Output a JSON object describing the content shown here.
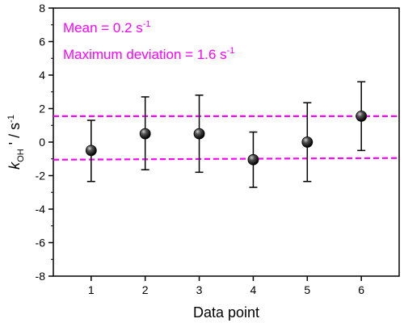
{
  "chart_data": {
    "type": "scatter",
    "xlabel": "Data point",
    "ylabel_parts": {
      "k": "k",
      "sub": "OH",
      "mid": " ' / s",
      "sup": "-1"
    },
    "xlim": [
      0.3,
      6.7
    ],
    "ylim": [
      -8,
      8
    ],
    "x_ticks": [
      "1",
      "2",
      "3",
      "4",
      "5",
      "6"
    ],
    "y_ticks": [
      "-8",
      "-6",
      "-4",
      "-2",
      "0",
      "2",
      "4",
      "6",
      "8"
    ],
    "points": [
      {
        "x": 1,
        "y": -0.5,
        "err_low": -2.35,
        "err_high": 1.3
      },
      {
        "x": 2,
        "y": 0.5,
        "err_low": -1.65,
        "err_high": 2.7
      },
      {
        "x": 3,
        "y": 0.5,
        "err_low": -1.8,
        "err_high": 2.8
      },
      {
        "x": 4,
        "y": -1.05,
        "err_low": -2.7,
        "err_high": 0.6
      },
      {
        "x": 5,
        "y": 0.0,
        "err_low": -2.35,
        "err_high": 2.35
      },
      {
        "x": 6,
        "y": 1.55,
        "err_low": -0.5,
        "err_high": 3.6
      }
    ],
    "reference_lines": [
      {
        "y_start": 1.55,
        "y_end": 1.55,
        "style": "dashed",
        "color": "#ff00ff"
      },
      {
        "y_start": -1.05,
        "y_end": -0.95,
        "style": "dashed",
        "color": "#ff00ff"
      }
    ],
    "annotations": [
      {
        "text": "Mean = 0.2 s",
        "sup": "-1"
      },
      {
        "text": "Maximum deviation = 1.6 s",
        "sup": "-1"
      }
    ],
    "annotation_color": "#ff00ff",
    "marker_color": "#000000",
    "grid": false,
    "legend": "none"
  }
}
